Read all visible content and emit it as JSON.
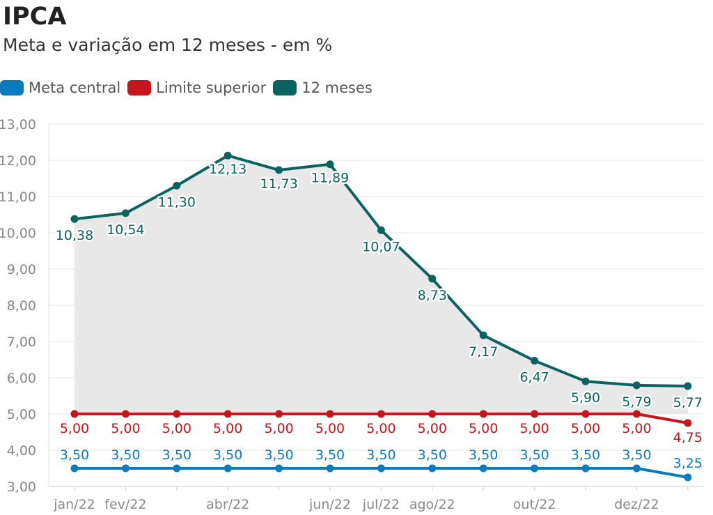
{
  "title": "IPCA",
  "subtitle": "Meta e variação em 12 meses - em %",
  "legend": [
    {
      "label": "Meta central",
      "color": "#0a7bbf"
    },
    {
      "label": "Limite superior",
      "color": "#c4161c"
    },
    {
      "label": "12 meses",
      "color": "#0b6360"
    }
  ],
  "chart_data": {
    "type": "line",
    "title": "IPCA",
    "subtitle": "Meta e variação em 12 meses - em %",
    "xlabel": "",
    "ylabel": "",
    "ylim": [
      3,
      13
    ],
    "yticks": [
      "3,00",
      "4,00",
      "5,00",
      "6,00",
      "7,00",
      "8,00",
      "9,00",
      "10,00",
      "11,00",
      "12,00",
      "13,00"
    ],
    "x_tick_labels": [
      "jan/22",
      "fev/22",
      "",
      "abr/22",
      "",
      "jun/22",
      "jul/22",
      "ago/22",
      "",
      "out/22",
      "",
      "dez/22",
      ""
    ],
    "series": [
      {
        "name": "12 meses",
        "color": "#0b6360",
        "area": true,
        "values": [
          10.38,
          10.54,
          11.3,
          12.13,
          11.73,
          11.89,
          10.07,
          8.73,
          7.17,
          6.47,
          5.9,
          5.79,
          5.77
        ],
        "labels": [
          "10,38",
          "10,54",
          "11,30",
          "12,13",
          "11,73",
          "11,89",
          "10,07",
          "8,73",
          "7,17",
          "6,47",
          "5,90",
          "5,79",
          "5,77"
        ]
      },
      {
        "name": "Limite superior",
        "color": "#c4161c",
        "values": [
          5,
          5,
          5,
          5,
          5,
          5,
          5,
          5,
          5,
          5,
          5,
          5,
          4.75
        ],
        "labels": [
          "5,00",
          "5,00",
          "5,00",
          "5,00",
          "5,00",
          "5,00",
          "5,00",
          "5,00",
          "5,00",
          "5,00",
          "5,00",
          "5,00",
          "4,75"
        ]
      },
      {
        "name": "Meta central",
        "color": "#0a7bbf",
        "values": [
          3.5,
          3.5,
          3.5,
          3.5,
          3.5,
          3.5,
          3.5,
          3.5,
          3.5,
          3.5,
          3.5,
          3.5,
          3.25
        ],
        "labels": [
          "3,50",
          "3,50",
          "3,50",
          "3,50",
          "3,50",
          "3,50",
          "3,50",
          "3,50",
          "3,50",
          "3,50",
          "3,50",
          "3,50",
          "3,25"
        ]
      }
    ]
  }
}
